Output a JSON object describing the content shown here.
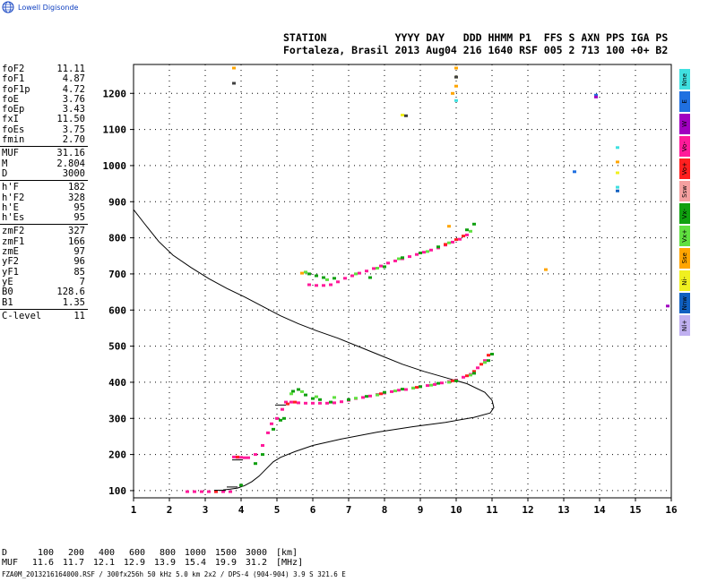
{
  "header": {
    "logo_text": "Lowell Digisonde",
    "line1": "STATION           YYYY DAY   DDD HHMM P1  FFS S AXN PPS IGA PS",
    "line2": "Fortaleza, Brasil 2013 Aug04 216 1640 RSF 005 2 713 100 +0+ B2"
  },
  "params": {
    "group1": [
      {
        "name": "foF2",
        "value": "11.11"
      },
      {
        "name": "foF1",
        "value": "4.87"
      },
      {
        "name": "foF1p",
        "value": "4.72"
      },
      {
        "name": "foE",
        "value": "3.76"
      },
      {
        "name": "foEp",
        "value": "3.43"
      },
      {
        "name": "fxI",
        "value": "11.50"
      },
      {
        "name": "foEs",
        "value": "3.75"
      },
      {
        "name": "fmin",
        "value": "2.70"
      }
    ],
    "group2": [
      {
        "name": "MUF",
        "value": "31.16"
      },
      {
        "name": "M",
        "value": "2.804"
      },
      {
        "name": "D",
        "value": "3000"
      }
    ],
    "group3": [
      {
        "name": "h'F",
        "value": "182"
      },
      {
        "name": "h'F2",
        "value": "328"
      },
      {
        "name": "h'E",
        "value": "95"
      },
      {
        "name": "h'Es",
        "value": "95"
      }
    ],
    "group4": [
      {
        "name": "zmF2",
        "value": "327"
      },
      {
        "name": "zmF1",
        "value": "166"
      },
      {
        "name": "zmE",
        "value": "97"
      },
      {
        "name": "yF2",
        "value": "96"
      },
      {
        "name": "yF1",
        "value": "85"
      },
      {
        "name": "yE",
        "value": "7"
      },
      {
        "name": "B0",
        "value": "128.6"
      },
      {
        "name": "B1",
        "value": "1.35"
      }
    ],
    "group5": [
      {
        "name": "C-level",
        "value": "11"
      }
    ]
  },
  "legend": [
    {
      "label": "Nne",
      "color": "#40e0e0"
    },
    {
      "label": "E",
      "color": "#2070e0"
    },
    {
      "label": "W",
      "color": "#a000c0"
    },
    {
      "label": "Vo-",
      "color": "#ff1a9a"
    },
    {
      "label": "Vo+",
      "color": "#ff2020"
    },
    {
      "label": "Ssw",
      "color": "#f4a0a0"
    },
    {
      "label": "Vx-",
      "color": "#10a010"
    },
    {
      "label": "Vx+",
      "color": "#60e040"
    },
    {
      "label": "Sse",
      "color": "#ffa500"
    },
    {
      "label": "Ni-",
      "color": "#f0f020"
    },
    {
      "label": "Nnw",
      "color": "#1060c0"
    },
    {
      "label": "Nl+",
      "color": "#c0b0f0"
    }
  ],
  "muf_table": {
    "d_label": "D",
    "d_values": [
      "100",
      "200",
      "400",
      "600",
      "800",
      "1000",
      "1500",
      "3000"
    ],
    "d_unit": "[km]",
    "muf_label": "MUF",
    "muf_values": [
      "11.6",
      "11.7",
      "12.1",
      "12.9",
      "13.9",
      "15.4",
      "19.9",
      "31.2"
    ],
    "muf_unit": "[MHz]"
  },
  "footer": "FZA0M_2013216164000.RSF / 300fx256h 50 kHz 5.0 km 2x2 / DPS-4 (904-904)  3.9 S 321.6 E",
  "chart_data": {
    "type": "scatter",
    "xlim": [
      1,
      16
    ],
    "ylim": [
      80,
      1280
    ],
    "x_ticks": [
      1,
      2,
      3,
      4,
      5,
      6,
      7,
      8,
      9,
      10,
      11,
      12,
      13,
      14,
      15,
      16
    ],
    "y_ticks": [
      100,
      200,
      300,
      400,
      500,
      600,
      700,
      800,
      900,
      1000,
      1100,
      1200
    ],
    "grid": "dotted",
    "series": [
      {
        "color": "#ff1a9a",
        "points": [
          [
            2.5,
            97
          ],
          [
            2.7,
            97
          ],
          [
            2.9,
            97
          ],
          [
            3.1,
            97
          ],
          [
            3.3,
            97
          ],
          [
            3.5,
            97
          ],
          [
            3.7,
            97
          ],
          [
            3.8,
            193
          ],
          [
            3.9,
            192
          ],
          [
            4.0,
            192
          ],
          [
            4.1,
            191
          ],
          [
            4.2,
            191
          ],
          [
            4.4,
            200
          ],
          [
            4.6,
            225
          ],
          [
            4.75,
            260
          ],
          [
            4.85,
            285
          ],
          [
            5.0,
            300
          ],
          [
            5.15,
            325
          ],
          [
            5.25,
            345
          ],
          [
            5.4,
            345
          ],
          [
            5.6,
            343
          ],
          [
            5.8,
            342
          ],
          [
            6.0,
            342
          ],
          [
            6.2,
            342
          ],
          [
            6.4,
            342
          ],
          [
            6.6,
            343
          ],
          [
            6.8,
            346
          ],
          [
            7.0,
            350
          ],
          [
            7.2,
            355
          ],
          [
            7.4,
            358
          ],
          [
            7.6,
            362
          ],
          [
            7.8,
            366
          ],
          [
            8.0,
            370
          ],
          [
            8.2,
            374
          ],
          [
            8.4,
            378
          ],
          [
            8.6,
            380
          ],
          [
            8.8,
            384
          ],
          [
            9.0,
            388
          ],
          [
            9.2,
            391
          ],
          [
            9.4,
            394
          ],
          [
            9.6,
            398
          ],
          [
            9.8,
            402
          ],
          [
            10.0,
            406
          ],
          [
            10.2,
            414
          ],
          [
            10.4,
            422
          ],
          [
            10.6,
            440
          ],
          [
            10.8,
            460
          ],
          [
            5.9,
            670
          ],
          [
            6.1,
            668
          ],
          [
            6.3,
            668
          ],
          [
            6.5,
            670
          ],
          [
            6.7,
            678
          ],
          [
            6.9,
            688
          ],
          [
            7.1,
            695
          ],
          [
            7.3,
            702
          ],
          [
            7.5,
            708
          ],
          [
            7.7,
            715
          ],
          [
            7.9,
            722
          ],
          [
            8.1,
            730
          ],
          [
            8.3,
            736
          ],
          [
            8.5,
            742
          ],
          [
            8.7,
            748
          ],
          [
            8.9,
            754
          ],
          [
            9.1,
            760
          ],
          [
            9.3,
            766
          ],
          [
            9.5,
            772
          ],
          [
            9.7,
            780
          ],
          [
            9.9,
            788
          ],
          [
            10.1,
            796
          ],
          [
            10.3,
            808
          ]
        ]
      },
      {
        "color": "#ff2020",
        "points": [
          [
            3.3,
            97
          ],
          [
            3.9,
            193
          ],
          [
            5.3,
            340
          ],
          [
            5.5,
            345
          ],
          [
            7.9,
            368
          ],
          [
            8.9,
            386
          ],
          [
            9.9,
            404
          ],
          [
            10.3,
            418
          ],
          [
            10.5,
            430
          ],
          [
            10.7,
            450
          ],
          [
            10.9,
            475
          ],
          [
            9.7,
            782
          ],
          [
            10.0,
            795
          ],
          [
            10.2,
            805
          ]
        ]
      },
      {
        "color": "#10a010",
        "points": [
          [
            4.0,
            115
          ],
          [
            4.4,
            175
          ],
          [
            4.6,
            200
          ],
          [
            4.9,
            270
          ],
          [
            5.1,
            295
          ],
          [
            5.2,
            300
          ],
          [
            5.45,
            375
          ],
          [
            5.6,
            380
          ],
          [
            5.8,
            365
          ],
          [
            6.0,
            355
          ],
          [
            6.2,
            352
          ],
          [
            6.5,
            345
          ],
          [
            7.0,
            352
          ],
          [
            7.5,
            361
          ],
          [
            8.0,
            372
          ],
          [
            8.5,
            381
          ],
          [
            9.0,
            388
          ],
          [
            9.5,
            397
          ],
          [
            10.0,
            404
          ],
          [
            10.5,
            425
          ],
          [
            10.9,
            460
          ],
          [
            11.0,
            478
          ],
          [
            5.9,
            700
          ],
          [
            6.1,
            695
          ],
          [
            6.3,
            690
          ],
          [
            6.6,
            688
          ],
          [
            7.6,
            690
          ],
          [
            8.0,
            720
          ],
          [
            8.5,
            745
          ],
          [
            9.0,
            758
          ],
          [
            9.5,
            775
          ],
          [
            10.3,
            822
          ],
          [
            10.5,
            838
          ]
        ]
      },
      {
        "color": "#60e040",
        "points": [
          [
            5.4,
            368
          ],
          [
            5.7,
            374
          ],
          [
            6.1,
            360
          ],
          [
            6.6,
            358
          ],
          [
            7.2,
            356
          ],
          [
            7.8,
            365
          ],
          [
            8.3,
            376
          ],
          [
            8.8,
            384
          ],
          [
            9.3,
            392
          ],
          [
            9.8,
            400
          ],
          [
            10.4,
            420
          ],
          [
            10.8,
            455
          ],
          [
            5.8,
            705
          ],
          [
            6.4,
            684
          ],
          [
            7.2,
            700
          ],
          [
            7.8,
            716
          ],
          [
            8.4,
            742
          ],
          [
            9.2,
            762
          ],
          [
            9.8,
            786
          ],
          [
            10.4,
            818
          ]
        ]
      },
      {
        "color": "#ffa500",
        "points": [
          [
            3.8,
            1270
          ],
          [
            10.0,
            1270
          ],
          [
            10.0,
            1220
          ],
          [
            9.9,
            1200
          ],
          [
            12.5,
            712
          ],
          [
            14.5,
            1010
          ],
          [
            9.8,
            832
          ],
          [
            5.7,
            702
          ]
        ]
      },
      {
        "color": "#f0f020",
        "points": [
          [
            10.0,
            1245
          ],
          [
            14.5,
            980
          ],
          [
            8.5,
            1140
          ]
        ]
      },
      {
        "color": "#40e0e0",
        "points": [
          [
            10.0,
            1180
          ],
          [
            14.5,
            1050
          ],
          [
            14.5,
            940
          ]
        ]
      },
      {
        "color": "#2070e0",
        "points": [
          [
            13.9,
            1195
          ],
          [
            13.3,
            983
          ]
        ]
      },
      {
        "color": "#a000c0",
        "points": [
          [
            15.9,
            611
          ],
          [
            13.9,
            1190
          ]
        ]
      },
      {
        "color": "#1060c0",
        "points": [
          [
            14.5,
            930
          ]
        ]
      },
      {
        "color": "#404040",
        "points": [
          [
            3.8,
            1228
          ],
          [
            10.0,
            1245
          ],
          [
            8.6,
            1138
          ]
        ]
      }
    ],
    "profile_curve": [
      [
        1,
        878
      ],
      [
        1.3,
        840
      ],
      [
        1.7,
        790
      ],
      [
        2.1,
        752
      ],
      [
        2.6,
        718
      ],
      [
        3.1,
        687
      ],
      [
        3.6,
        660
      ],
      [
        4.1,
        636
      ],
      [
        4.6,
        610
      ],
      [
        5.1,
        584
      ],
      [
        5.6,
        562
      ],
      [
        6.1,
        543
      ],
      [
        6.7,
        522
      ],
      [
        7.3,
        498
      ],
      [
        7.9,
        474
      ],
      [
        8.5,
        450
      ],
      [
        9.1,
        430
      ],
      [
        9.7,
        413
      ],
      [
        10.3,
        396
      ],
      [
        10.8,
        372
      ],
      [
        11.0,
        350
      ],
      [
        11.05,
        330
      ],
      [
        10.95,
        315
      ],
      [
        10.5,
        303
      ],
      [
        9.7,
        289
      ],
      [
        8.8,
        277
      ],
      [
        7.8,
        262
      ],
      [
        6.8,
        243
      ],
      [
        6.0,
        225
      ],
      [
        5.5,
        208
      ],
      [
        5.1,
        192
      ],
      [
        4.9,
        180
      ],
      [
        4.7,
        160
      ],
      [
        4.5,
        140
      ],
      [
        4.3,
        125
      ],
      [
        4.1,
        114
      ],
      [
        3.9,
        107
      ],
      [
        3.7,
        104
      ],
      [
        3.5,
        102
      ]
    ],
    "markers": [
      [
        5.1,
        337
      ],
      [
        3.9,
        185
      ],
      [
        3.75,
        110
      ],
      [
        3.4,
        101
      ]
    ]
  }
}
